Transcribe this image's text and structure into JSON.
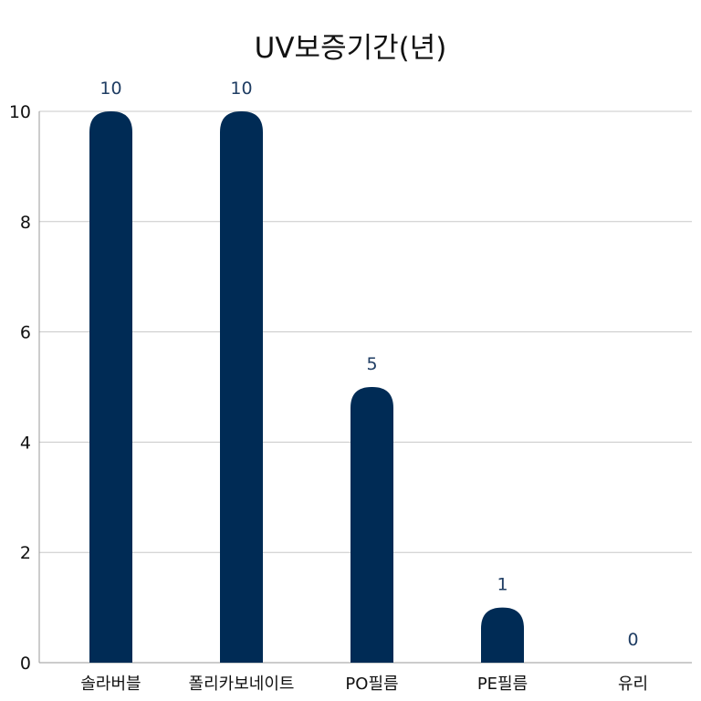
{
  "chart_data": {
    "type": "bar",
    "title": "UV보증기간(년)",
    "categories": [
      "솔라버블",
      "폴리카보네이트",
      "PO필름",
      "PE필름",
      "유리"
    ],
    "values": [
      10,
      10,
      5,
      1,
      0
    ],
    "data_labels": [
      "10",
      "10",
      "5",
      "1",
      "0"
    ],
    "xlabel": "",
    "ylabel": "",
    "ylim": [
      0,
      10
    ],
    "yticks": [
      "0",
      "2",
      "4",
      "6",
      "8",
      "10"
    ],
    "grid": true,
    "bar_color": "#002b55",
    "label_color": "#1f3d63"
  }
}
